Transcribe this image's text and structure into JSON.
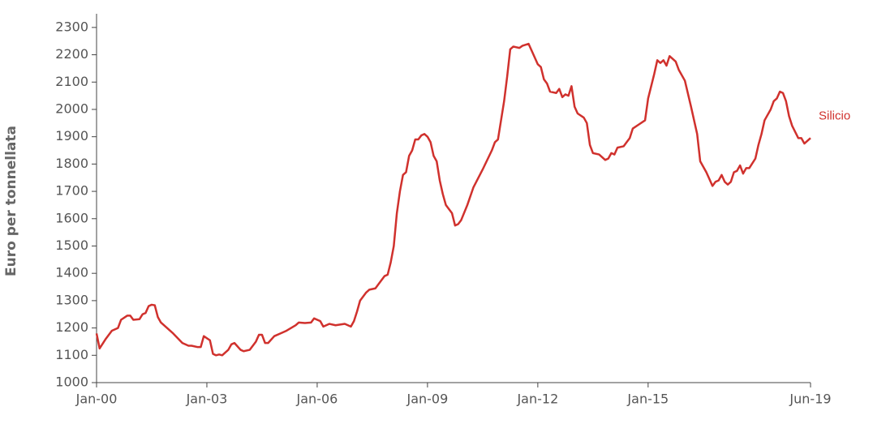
{
  "chart_data": {
    "type": "line",
    "y_label": "Euro per tonnellata",
    "x": [
      "Jan-00",
      "Feb-00",
      "Apr-00",
      "Jun-00",
      "Aug-00",
      "Sep-00",
      "Nov-00",
      "Dec-00",
      "Jan-01",
      "Mar-01",
      "Apr-01",
      "May-01",
      "Jun-01",
      "Jul-01",
      "Aug-01",
      "Sep-01",
      "Oct-01",
      "Dec-01",
      "Feb-02",
      "May-02",
      "Jul-02",
      "Aug-02",
      "Oct-02",
      "Nov-02",
      "Dec-02",
      "Feb-03",
      "Mar-03",
      "Apr-03",
      "May-03",
      "Jun-03",
      "Aug-03",
      "Sep-03",
      "Oct-03",
      "Dec-03",
      "Jan-04",
      "Mar-04",
      "May-04",
      "Jun-04",
      "Jul-04",
      "Aug-04",
      "Sep-04",
      "Nov-04",
      "Jan-05",
      "Mar-05",
      "Jun-05",
      "Jul-05",
      "Sep-05",
      "Nov-05",
      "Dec-05",
      "Feb-06",
      "Mar-06",
      "May-06",
      "Jul-06",
      "Oct-06",
      "Dec-06",
      "Jan-07",
      "Feb-07",
      "Mar-07",
      "May-07",
      "Jun-07",
      "Aug-07",
      "Sep-07",
      "Nov-07",
      "Dec-07",
      "Jan-08",
      "Feb-08",
      "Mar-08",
      "Apr-08",
      "May-08",
      "Jun-08",
      "Jul-08",
      "Aug-08",
      "Sep-08",
      "Oct-08",
      "Nov-08",
      "Dec-08",
      "Jan-09",
      "Feb-09",
      "Mar-09",
      "Apr-09",
      "May-09",
      "Jun-09",
      "Jul-09",
      "Sep-09",
      "Oct-09",
      "Nov-09",
      "Dec-09",
      "Feb-10",
      "Apr-10",
      "Jul-10",
      "Oct-10",
      "Nov-10",
      "Dec-10",
      "Jan-11",
      "Feb-11",
      "Mar-11",
      "Apr-11",
      "May-11",
      "Jul-11",
      "Aug-11",
      "Oct-11",
      "Nov-11",
      "Jan-12",
      "Feb-12",
      "Mar-12",
      "Apr-12",
      "May-12",
      "Jul-12",
      "Aug-12",
      "Sep-12",
      "Oct-12",
      "Nov-12",
      "Dec-12",
      "Jan-13",
      "Feb-13",
      "Apr-13",
      "May-13",
      "Jun-13",
      "Jul-13",
      "Sep-13",
      "Nov-13",
      "Dec-13",
      "Jan-14",
      "Feb-14",
      "Mar-14",
      "May-14",
      "Jun-14",
      "Jul-14",
      "Aug-14",
      "Oct-14",
      "Dec-14",
      "Jan-15",
      "Mar-15",
      "Apr-15",
      "May-15",
      "Jun-15",
      "Jul-15",
      "Aug-15",
      "Oct-15",
      "Nov-15",
      "Jan-16",
      "Mar-16",
      "May-16",
      "Jun-16",
      "Aug-16",
      "Sep-16",
      "Oct-16",
      "Nov-16",
      "Dec-16",
      "Jan-17",
      "Feb-17",
      "Mar-17",
      "Apr-17",
      "May-17",
      "Jun-17",
      "Jul-17",
      "Aug-17",
      "Sep-17",
      "Oct-17",
      "Dec-17",
      "Jan-18",
      "Feb-18",
      "Mar-18",
      "May-18",
      "Jun-18",
      "Jul-18",
      "Aug-18",
      "Sep-18",
      "Oct-18",
      "Nov-18",
      "Dec-18",
      "Feb-19",
      "Mar-19",
      "Apr-19",
      "May-19",
      "Jun-19"
    ],
    "series": [
      {
        "name": "Silicio",
        "color": "#d0312d",
        "values": [
          1180,
          1125,
          1160,
          1190,
          1200,
          1230,
          1245,
          1245,
          1230,
          1232,
          1250,
          1255,
          1280,
          1285,
          1283,
          1240,
          1220,
          1200,
          1180,
          1145,
          1135,
          1135,
          1130,
          1130,
          1170,
          1155,
          1105,
          1100,
          1103,
          1100,
          1120,
          1140,
          1145,
          1120,
          1115,
          1120,
          1150,
          1175,
          1175,
          1145,
          1145,
          1170,
          1180,
          1190,
          1210,
          1220,
          1218,
          1220,
          1235,
          1225,
          1205,
          1215,
          1210,
          1215,
          1205,
          1225,
          1260,
          1300,
          1330,
          1340,
          1345,
          1360,
          1390,
          1395,
          1440,
          1500,
          1620,
          1700,
          1760,
          1770,
          1830,
          1850,
          1890,
          1890,
          1905,
          1910,
          1900,
          1880,
          1830,
          1810,
          1740,
          1690,
          1650,
          1620,
          1575,
          1580,
          1595,
          1650,
          1715,
          1780,
          1850,
          1880,
          1890,
          1960,
          2030,
          2120,
          2220,
          2230,
          2225,
          2233,
          2240,
          2215,
          2165,
          2155,
          2110,
          2095,
          2065,
          2060,
          2075,
          2045,
          2055,
          2050,
          2085,
          2010,
          1985,
          1970,
          1950,
          1870,
          1840,
          1835,
          1815,
          1820,
          1840,
          1835,
          1860,
          1865,
          1880,
          1895,
          1930,
          1945,
          1960,
          2040,
          2130,
          2180,
          2170,
          2180,
          2160,
          2195,
          2175,
          2145,
          2105,
          2010,
          1910,
          1810,
          1770,
          1745,
          1720,
          1735,
          1740,
          1760,
          1735,
          1725,
          1735,
          1770,
          1775,
          1795,
          1765,
          1785,
          1785,
          1820,
          1870,
          1910,
          1960,
          2000,
          2030,
          2040,
          2065,
          2060,
          2030,
          1975,
          1940,
          1895,
          1895,
          1875,
          1885,
          1895
        ]
      }
    ],
    "xlim": [
      "Jan-00",
      "Jun-19"
    ],
    "xticks": [
      "Jan-00",
      "Jan-03",
      "Jan-06",
      "Jan-09",
      "Jan-12",
      "Jan-15",
      "Jun-19"
    ],
    "ylim": [
      1000,
      2350
    ],
    "yticks": [
      1000,
      1100,
      1200,
      1300,
      1400,
      1500,
      1600,
      1700,
      1800,
      1900,
      2000,
      2100,
      2200,
      2300
    ],
    "grid": false
  }
}
